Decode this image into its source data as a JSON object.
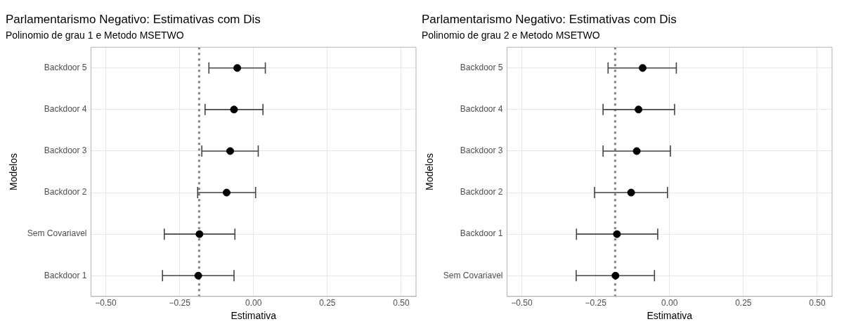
{
  "chart_data": [
    {
      "type": "scatter",
      "orientation": "horizontal",
      "title": "Parlamentarismo Negativo: Estimativas com Dis",
      "subtitle": "Polinomio de grau 1 e Metodo MSETWO",
      "xlabel": "Estimativa",
      "ylabel": "Modelos",
      "categories": [
        "Backdoor 5",
        "Backdoor 4",
        "Backdoor 3",
        "Backdoor 2",
        "Sem Covariavel",
        "Backdoor 1"
      ],
      "values": [
        -0.055,
        -0.066,
        -0.079,
        -0.091,
        -0.183,
        -0.187
      ],
      "errors": [
        [
          -0.151,
          0.04
        ],
        [
          -0.164,
          0.032
        ],
        [
          -0.175,
          0.016
        ],
        [
          -0.189,
          0.007
        ],
        [
          -0.302,
          -0.063
        ],
        [
          -0.308,
          -0.066
        ]
      ],
      "color": "#000000",
      "marker": "circle",
      "xlim": [
        -0.55,
        0.55
      ],
      "xticks": [
        {
          "value": -0.5,
          "label": "−0.50"
        },
        {
          "value": -0.25,
          "label": "−0.25"
        },
        {
          "value": 0,
          "label": "0.00"
        },
        {
          "value": 0.25,
          "label": "0.25"
        },
        {
          "value": 0.5,
          "label": "0.50"
        }
      ],
      "grid": true,
      "ref_lines": [
        {
          "axis": "x",
          "value": -0.184,
          "color": "#808080",
          "line_style": "dotted"
        }
      ]
    },
    {
      "type": "scatter",
      "orientation": "horizontal",
      "title": "Parlamentarismo Negativo: Estimativas com Dis",
      "subtitle": "Polinomio de grau 2 e Metodo MSETWO",
      "xlabel": "Estimativa",
      "ylabel": "Modelos",
      "categories": [
        "Backdoor 5",
        "Backdoor 4",
        "Backdoor 3",
        "Backdoor 2",
        "Backdoor 1",
        "Sem Covariavel"
      ],
      "values": [
        -0.091,
        -0.105,
        -0.111,
        -0.13,
        -0.178,
        -0.183
      ],
      "errors": [
        [
          -0.208,
          0.023
        ],
        [
          -0.225,
          0.017
        ],
        [
          -0.225,
          0.003
        ],
        [
          -0.254,
          -0.007
        ],
        [
          -0.315,
          -0.04
        ],
        [
          -0.316,
          -0.051
        ]
      ],
      "color": "#000000",
      "marker": "circle",
      "xlim": [
        -0.55,
        0.55
      ],
      "xticks": [
        {
          "value": -0.5,
          "label": "−0.50"
        },
        {
          "value": -0.25,
          "label": "−0.25"
        },
        {
          "value": 0,
          "label": "0.00"
        },
        {
          "value": 0.25,
          "label": "0.25"
        },
        {
          "value": 0.5,
          "label": "0.50"
        }
      ],
      "grid": true,
      "ref_lines": [
        {
          "axis": "x",
          "value": -0.184,
          "color": "#808080",
          "line_style": "dotted"
        }
      ]
    }
  ]
}
